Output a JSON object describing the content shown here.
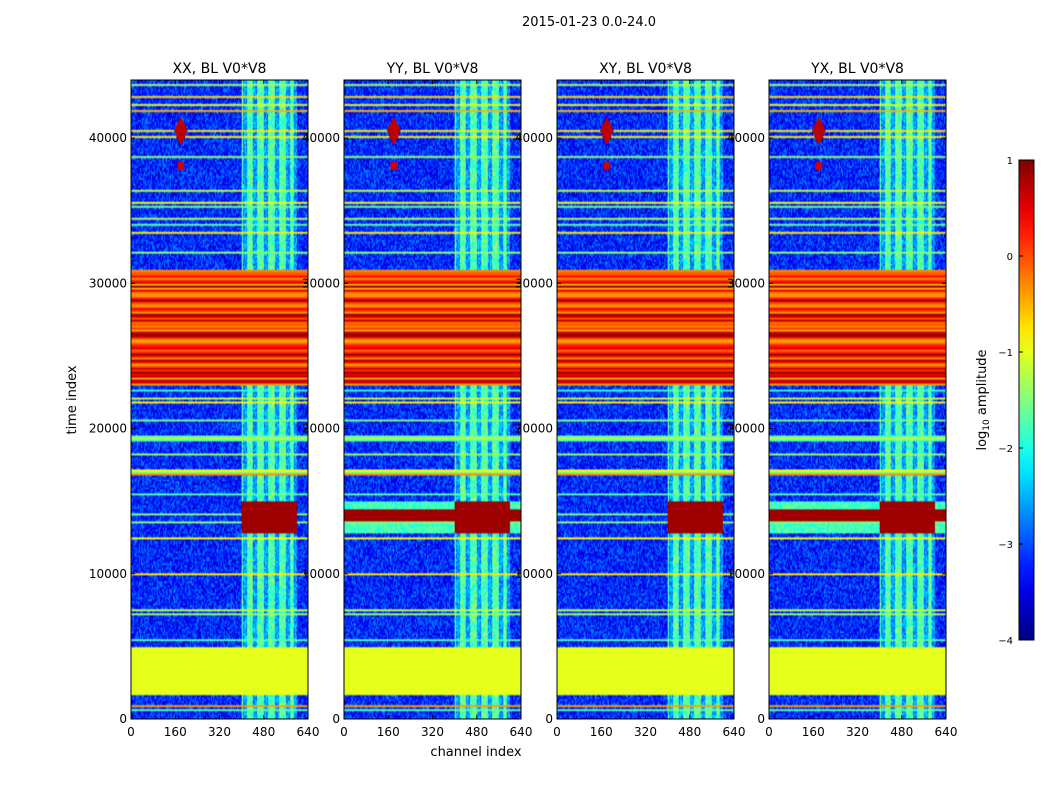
{
  "figure": {
    "suptitle": "2015-01-23 0.0-24.0"
  },
  "chart_data": {
    "type": "heatmap",
    "xlabel": "channel index",
    "ylabel": "time index",
    "xlim": [
      0,
      640
    ],
    "ylim": [
      0,
      44000
    ],
    "xticks": [
      0,
      160,
      320,
      480,
      640
    ],
    "yticks": [
      0,
      10000,
      20000,
      30000,
      40000
    ],
    "panels": [
      {
        "title": "XX, BL V0*V8",
        "pol": "XX"
      },
      {
        "title": "YY, BL V0*V8",
        "pol": "YY"
      },
      {
        "title": "XY, BL V0*V8",
        "pol": "XY"
      },
      {
        "title": "YX, BL V0*V8",
        "pol": "YX"
      }
    ],
    "colorbar": {
      "label": "log10 amplitude",
      "label_base": "log",
      "label_sub": "10",
      "label_rest": " amplitude",
      "vmin": -4,
      "vmax": 1,
      "ticks": [
        1,
        0,
        -1,
        -2,
        -3,
        -4
      ],
      "tick_labels": [
        "1",
        "0",
        "−1",
        "−2",
        "−3",
        "−4"
      ],
      "colormap": "jet"
    },
    "features": {
      "rfi_channel_band": [
        400,
        600
      ],
      "strong_rfi_time_band": [
        23000,
        31000
      ],
      "flat_fill_time_band": [
        1600,
        4900
      ],
      "flat_fill_value": -1.0,
      "burst_time_band": [
        12800,
        15000
      ],
      "burst_time_band_full_width_pols": [
        "YY",
        "YX"
      ],
      "bright_source_time": 40500,
      "bright_source_channel": 180
    }
  }
}
